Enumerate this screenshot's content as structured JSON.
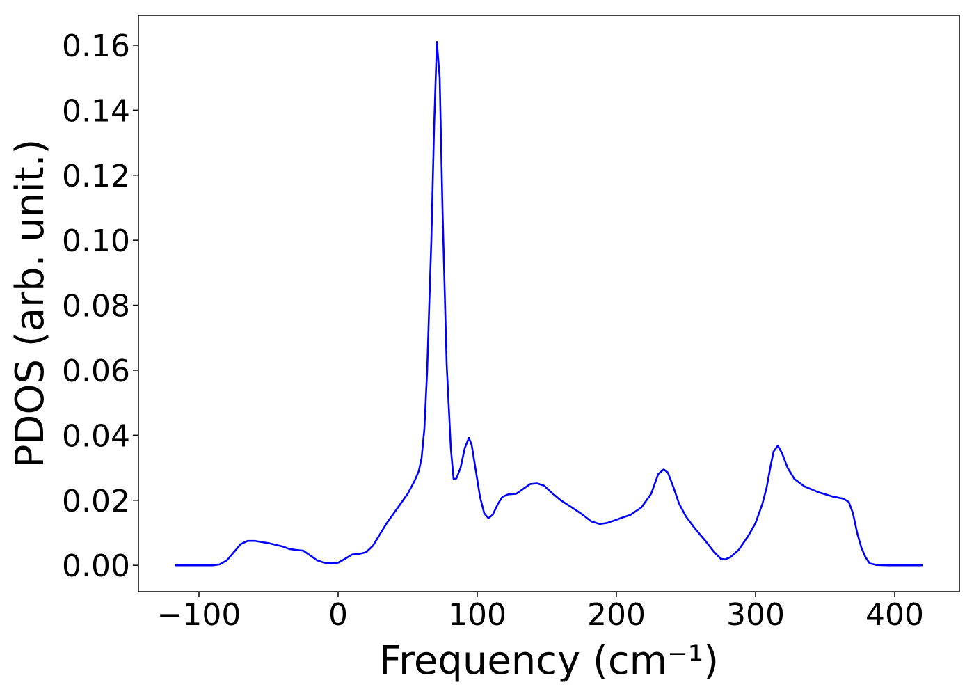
{
  "chart_data": {
    "type": "line",
    "xlabel": "Frequency (cm⁻¹)",
    "ylabel": "PDOS (arb. unit.)",
    "x": [
      -117,
      -90,
      -85,
      -80,
      -75,
      -70,
      -65,
      -60,
      -50,
      -40,
      -35,
      -30,
      -25,
      -20,
      -15,
      -10,
      -5,
      0,
      5,
      10,
      15,
      20,
      25,
      30,
      35,
      40,
      45,
      50,
      55,
      58,
      60,
      62,
      64,
      67,
      69,
      71,
      73,
      75,
      78,
      81,
      83,
      85,
      88,
      91,
      94,
      96,
      99,
      102,
      105,
      108,
      111,
      115,
      118,
      122,
      128,
      133,
      138,
      143,
      148,
      153,
      160,
      168,
      175,
      182,
      188,
      193,
      198,
      203,
      210,
      218,
      225,
      230,
      234,
      237,
      241,
      245,
      250,
      257,
      264,
      270,
      275,
      278,
      282,
      288,
      295,
      300,
      305,
      308,
      311,
      313,
      316,
      319,
      323,
      328,
      335,
      345,
      355,
      363,
      367,
      370,
      373,
      376,
      379,
      382,
      387,
      395,
      420
    ],
    "series": [
      {
        "name": "PDOS",
        "color": "#0000ff",
        "values": [
          0,
          0,
          0.0003,
          0.0015,
          0.004,
          0.0065,
          0.0075,
          0.0075,
          0.0068,
          0.0058,
          0.005,
          0.0047,
          0.0045,
          0.003,
          0.0015,
          0.0008,
          0.0006,
          0.0008,
          0.002,
          0.0033,
          0.0035,
          0.004,
          0.006,
          0.0095,
          0.013,
          0.016,
          0.019,
          0.022,
          0.026,
          0.029,
          0.033,
          0.042,
          0.06,
          0.1,
          0.135,
          0.161,
          0.15,
          0.11,
          0.062,
          0.036,
          0.0265,
          0.0267,
          0.03,
          0.036,
          0.0392,
          0.037,
          0.029,
          0.021,
          0.016,
          0.0145,
          0.0155,
          0.019,
          0.021,
          0.0218,
          0.022,
          0.0235,
          0.025,
          0.0252,
          0.0245,
          0.0225,
          0.02,
          0.0178,
          0.0158,
          0.0135,
          0.0127,
          0.013,
          0.0137,
          0.0145,
          0.0155,
          0.0178,
          0.022,
          0.028,
          0.0295,
          0.0285,
          0.024,
          0.019,
          0.015,
          0.011,
          0.0075,
          0.0042,
          0.002,
          0.0018,
          0.0025,
          0.0048,
          0.0092,
          0.013,
          0.019,
          0.024,
          0.031,
          0.035,
          0.0368,
          0.0345,
          0.03,
          0.0265,
          0.0243,
          0.0225,
          0.0212,
          0.0205,
          0.0195,
          0.016,
          0.01,
          0.0055,
          0.0025,
          0.0006,
          0.0001,
          0,
          0
        ]
      }
    ],
    "xlim": [
      -143.5,
      446.5
    ],
    "ylim": [
      -0.0081,
      0.1692
    ],
    "xticks": [
      {
        "value": -100,
        "label": "−100"
      },
      0,
      100,
      200,
      300,
      400
    ],
    "yticks": [
      {
        "value": 0,
        "label": "0.00"
      },
      {
        "value": 0.02,
        "label": "0.02"
      },
      {
        "value": 0.04,
        "label": "0.04"
      },
      {
        "value": 0.06,
        "label": "0.06"
      },
      {
        "value": 0.08,
        "label": "0.08"
      },
      {
        "value": 0.1,
        "label": "0.10"
      },
      {
        "value": 0.12,
        "label": "0.12"
      },
      {
        "value": 0.14,
        "label": "0.14"
      },
      {
        "value": 0.16,
        "label": "0.16"
      }
    ],
    "grid": false
  }
}
